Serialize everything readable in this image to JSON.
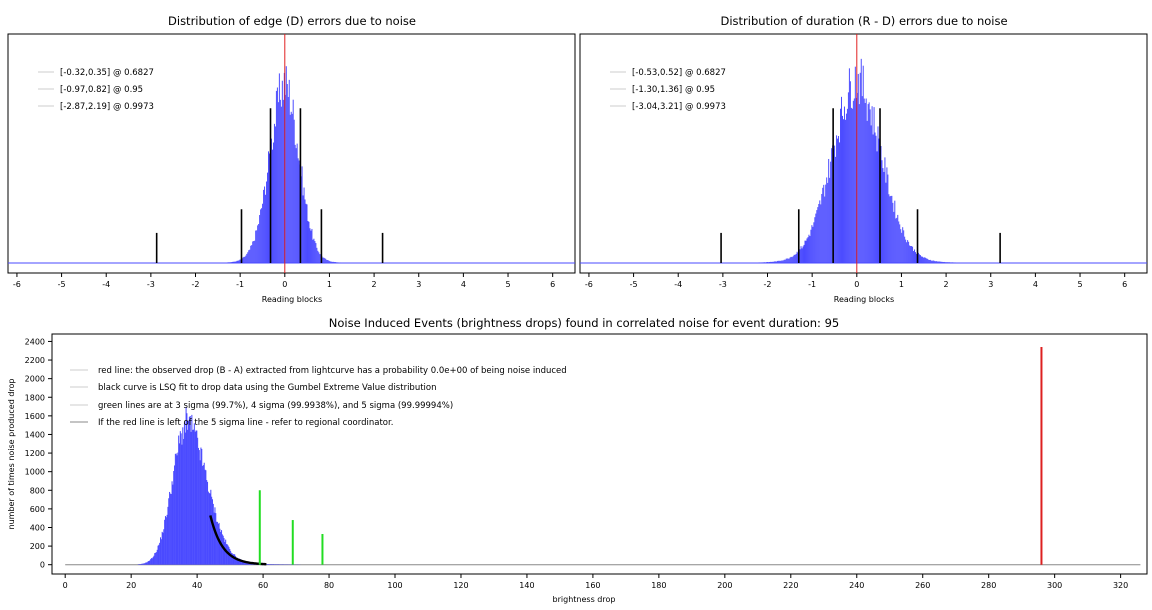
{
  "chart_data": [
    {
      "type": "histogram",
      "title": "Distribution of edge (D) errors due to noise",
      "xlabel": "Reading blocks",
      "ylabel": "",
      "xlim": [
        -6.2,
        6.5
      ],
      "x_ticks": [
        "-6",
        "-5",
        "-4",
        "-3",
        "-2",
        "-1",
        "0",
        "1",
        "2",
        "3",
        "4",
        "5",
        "6"
      ],
      "histogram": {
        "color": "#4a4aff",
        "center": 0.0,
        "peak": 1.0,
        "sigma_left": 0.34,
        "sigma_right": 0.32,
        "tail": 0.22
      },
      "center_line": {
        "x": 0.0,
        "color": "#e02020"
      },
      "interval_lines": [
        {
          "lo": -0.32,
          "hi": 0.35,
          "height": 0.72
        },
        {
          "lo": -0.97,
          "hi": 0.82,
          "height": 0.25
        },
        {
          "lo": -2.87,
          "hi": 2.19,
          "height": 0.14
        }
      ],
      "legend": [
        "[-0.32,0.35] @ 0.6827",
        "[-0.97,0.82] @ 0.95",
        "[-2.87,2.19] @ 0.9973"
      ]
    },
    {
      "type": "histogram",
      "title": "Distribution of duration (R - D) errors due to noise",
      "xlabel": "Reading blocks",
      "ylabel": "",
      "xlim": [
        -6.2,
        6.5
      ],
      "x_ticks": [
        "-6",
        "-5",
        "-4",
        "-3",
        "-2",
        "-1",
        "0",
        "1",
        "2",
        "3",
        "4",
        "5",
        "6"
      ],
      "histogram": {
        "color": "#4a4aff",
        "center": 0.0,
        "peak": 1.0,
        "sigma_left": 0.55,
        "sigma_right": 0.55,
        "tail": 0.28
      },
      "center_line": {
        "x": 0.0,
        "color": "#e02020"
      },
      "interval_lines": [
        {
          "lo": -0.53,
          "hi": 0.52,
          "height": 0.72
        },
        {
          "lo": -1.3,
          "hi": 1.36,
          "height": 0.25
        },
        {
          "lo": -3.04,
          "hi": 3.21,
          "height": 0.14
        }
      ],
      "legend": [
        "[-0.53,0.52] @ 0.6827",
        "[-1.30,1.36] @ 0.95",
        "[-3.04,3.21] @ 0.9973"
      ]
    },
    {
      "type": "histogram",
      "title": "Noise Induced Events (brightness drops) found in correlated noise for event duration: 95",
      "xlabel": "brightness drop",
      "ylabel": "number of times noise produced drop",
      "xlim": [
        -4,
        328
      ],
      "ylim": [
        -100,
        2480
      ],
      "x_ticks": [
        0,
        20,
        40,
        60,
        80,
        100,
        120,
        140,
        160,
        180,
        200,
        220,
        240,
        260,
        280,
        300,
        320
      ],
      "y_ticks": [
        0,
        200,
        400,
        600,
        800,
        1000,
        1200,
        1400,
        1600,
        1800,
        2000,
        2200,
        2400
      ],
      "histogram": {
        "color": "#4a4aff",
        "mode": 36.5,
        "peak": 1480,
        "sigma_left": 4.2,
        "sigma_right": 6.2,
        "x_start": 22,
        "x_end": 78
      },
      "fit_curve": {
        "color": "#000000",
        "x_start": 44,
        "x_end": 61,
        "y_start": 530,
        "decay": 0.27
      },
      "sigma_lines": [
        {
          "x": 59,
          "y": 800,
          "color": "#22dd22"
        },
        {
          "x": 69,
          "y": 480,
          "color": "#22dd22"
        },
        {
          "x": 78,
          "y": 330,
          "color": "#22dd22"
        }
      ],
      "observed_drop": {
        "x": 296,
        "y": 2340,
        "color": "#dd2020"
      },
      "baseline": {
        "x_start": 0,
        "x_end": 326
      },
      "legend": [
        "red line: the observed drop (B - A) extracted from lightcurve has a probability 0.0e+00 of being noise induced",
        "black curve is LSQ fit to drop data using the Gumbel Extreme Value distribution",
        "green lines are at 3 sigma (99.7%), 4 sigma (99.9938%), and 5 sigma (99.99994%)",
        "If the red line is left of the 5 sigma line - refer to regional coordinator."
      ]
    }
  ]
}
